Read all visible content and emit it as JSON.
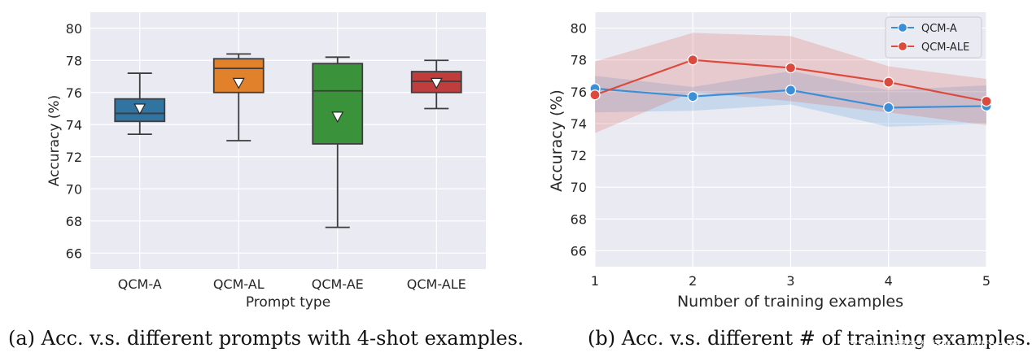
{
  "chart_data": [
    {
      "type": "box",
      "xlabel": "Prompt type",
      "ylabel": "Accuracy (%)",
      "ylim": [
        65,
        81
      ],
      "yticks": [
        66,
        68,
        70,
        72,
        74,
        76,
        78,
        80
      ],
      "categories": [
        "QCM-A",
        "QCM-AL",
        "QCM-AE",
        "QCM-ALE"
      ],
      "boxes": [
        {
          "label": "QCM-A",
          "whisker_low": 73.4,
          "q1": 74.2,
          "median": 74.7,
          "q3": 75.6,
          "whisker_high": 77.2,
          "mean": 75.0,
          "color": "#3274a1"
        },
        {
          "label": "QCM-AL",
          "whisker_low": 73.0,
          "q1": 76.0,
          "median": 77.5,
          "q3": 78.1,
          "whisker_high": 78.4,
          "mean": 76.6,
          "color": "#e1812c"
        },
        {
          "label": "QCM-AE",
          "whisker_low": 67.6,
          "q1": 72.8,
          "median": 76.1,
          "q3": 77.8,
          "whisker_high": 78.2,
          "mean": 74.5,
          "color": "#3a923a"
        },
        {
          "label": "QCM-ALE",
          "whisker_low": 75.0,
          "q1": 76.0,
          "median": 76.7,
          "q3": 77.3,
          "whisker_high": 78.0,
          "mean": 76.6,
          "color": "#c03d3e"
        }
      ],
      "grid": true
    },
    {
      "type": "line",
      "xlabel": "Number of training examples",
      "ylabel": "Accuracy (%)",
      "xlim": [
        1,
        5
      ],
      "ylim": [
        65,
        81
      ],
      "xticks": [
        1,
        2,
        3,
        4,
        5
      ],
      "yticks": [
        66,
        68,
        70,
        72,
        74,
        76,
        78,
        80
      ],
      "x": [
        1,
        2,
        3,
        4,
        5
      ],
      "series": [
        {
          "name": "QCM-A",
          "values": [
            76.2,
            75.7,
            76.1,
            75.0,
            75.1
          ],
          "band_low": [
            74.7,
            74.8,
            75.2,
            73.8,
            74.0
          ],
          "band_high": [
            77.0,
            76.3,
            77.3,
            76.1,
            76.4
          ],
          "color": "#3b8fd9"
        },
        {
          "name": "QCM-ALE",
          "values": [
            75.8,
            78.0,
            77.5,
            76.6,
            75.4
          ],
          "band_low": [
            73.4,
            76.0,
            75.4,
            74.7,
            73.9
          ],
          "band_high": [
            77.9,
            79.7,
            79.5,
            77.6,
            76.8
          ],
          "color": "#dc4a3d"
        }
      ],
      "legend": "top-right",
      "grid": true
    }
  ],
  "captions": {
    "a": "(a) Acc. v.s. different prompts with 4-shot examples.",
    "b": "(b) Acc. v.s. different # of training examples."
  },
  "watermark": "CSDN @易学智能EasyAIforum",
  "colors": {
    "plot_bg": "#eaeaf2",
    "grid": "#ffffff"
  }
}
